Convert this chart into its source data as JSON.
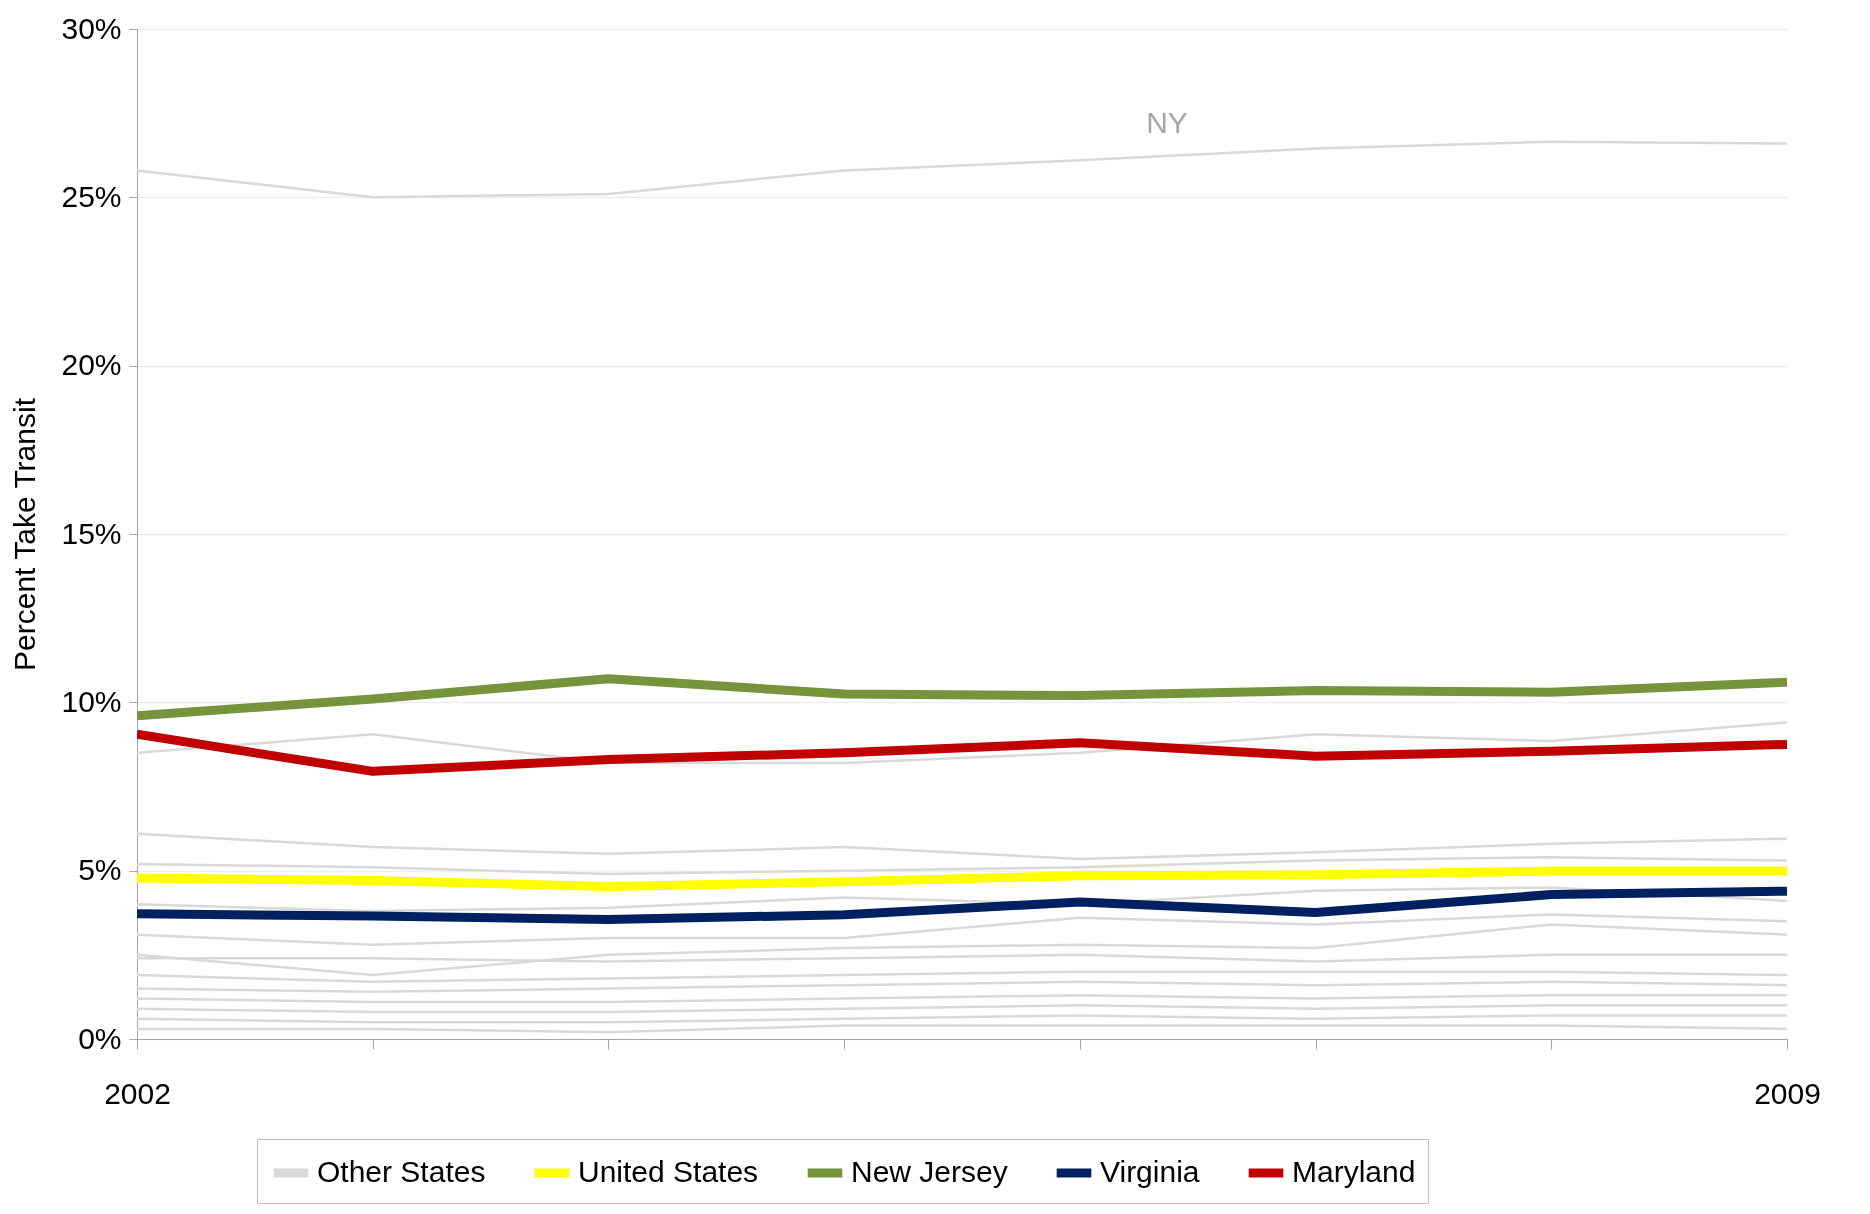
{
  "chart_data": {
    "type": "line",
    "ylabel": "Percent Take Transit",
    "x": [
      2002,
      2003,
      2004,
      2005,
      2006,
      2007,
      2008,
      2009
    ],
    "xlim": [
      2002,
      2009
    ],
    "xticks": [
      2002,
      {
        "value": 2003,
        "label": null
      },
      {
        "value": 2004,
        "label": null
      },
      {
        "value": 2005,
        "label": null
      },
      {
        "value": 2006,
        "label": null
      },
      {
        "value": 2007,
        "label": null
      },
      {
        "value": 2008,
        "label": null
      },
      2009
    ],
    "ylim": [
      0,
      30
    ],
    "yticks": [
      {
        "value": 0,
        "label": "0%"
      },
      {
        "value": 5,
        "label": "5%"
      },
      {
        "value": 10,
        "label": "10%"
      },
      {
        "value": 15,
        "label": "15%"
      },
      {
        "value": 20,
        "label": "20%"
      },
      {
        "value": 25,
        "label": "25%"
      },
      {
        "value": 30,
        "label": "30%"
      }
    ],
    "grid": "y",
    "legend": "bottom",
    "annotations": [
      "NY"
    ],
    "series": [
      {
        "name": "Other States",
        "color": "#d9d9d9",
        "values": [
          25.8,
          25.0,
          25.1,
          25.8,
          26.1,
          26.45,
          26.65,
          26.6
        ]
      },
      {
        "color": "#d9d9d9",
        "values": [
          8.5,
          9.05,
          8.2,
          8.2,
          8.5,
          9.05,
          8.85,
          9.4
        ]
      },
      {
        "color": "#d9d9d9",
        "values": [
          6.1,
          5.7,
          5.5,
          5.7,
          5.35,
          5.55,
          5.8,
          5.95
        ]
      },
      {
        "color": "#d9d9d9",
        "values": [
          5.2,
          5.1,
          4.9,
          5.0,
          5.1,
          5.3,
          5.4,
          5.3
        ]
      },
      {
        "color": "#d9d9d9",
        "values": [
          4.0,
          3.8,
          3.9,
          4.2,
          4.0,
          4.4,
          4.5,
          4.1
        ]
      },
      {
        "color": "#d9d9d9",
        "values": [
          3.1,
          2.8,
          3.0,
          3.0,
          3.6,
          3.4,
          3.7,
          3.5
        ]
      },
      {
        "color": "#d9d9d9",
        "values": [
          2.5,
          1.9,
          2.5,
          2.7,
          2.8,
          2.7,
          3.4,
          3.1
        ]
      },
      {
        "color": "#d9d9d9",
        "values": [
          2.4,
          2.4,
          2.3,
          2.4,
          2.5,
          2.3,
          2.5,
          2.5
        ]
      },
      {
        "color": "#d9d9d9",
        "values": [
          1.9,
          1.7,
          1.8,
          1.9,
          2.0,
          2.0,
          2.0,
          1.9
        ]
      },
      {
        "color": "#d9d9d9",
        "values": [
          1.5,
          1.4,
          1.5,
          1.6,
          1.7,
          1.6,
          1.7,
          1.6
        ]
      },
      {
        "color": "#d9d9d9",
        "values": [
          1.2,
          1.1,
          1.1,
          1.2,
          1.3,
          1.2,
          1.3,
          1.3
        ]
      },
      {
        "color": "#d9d9d9",
        "values": [
          0.9,
          0.8,
          0.8,
          0.9,
          1.0,
          0.9,
          1.0,
          1.0
        ]
      },
      {
        "color": "#d9d9d9",
        "values": [
          0.6,
          0.5,
          0.5,
          0.6,
          0.7,
          0.6,
          0.7,
          0.7
        ]
      },
      {
        "color": "#d9d9d9",
        "values": [
          0.3,
          0.3,
          0.2,
          0.4,
          0.4,
          0.4,
          0.4,
          0.3
        ]
      },
      {
        "name": "United States",
        "color": "#ffff00",
        "values": [
          4.78,
          4.71,
          4.53,
          4.67,
          4.85,
          4.88,
          4.99,
          4.99
        ]
      },
      {
        "name": "New Jersey",
        "color": "#77933c",
        "values": [
          9.6,
          10.1,
          10.7,
          10.25,
          10.2,
          10.35,
          10.3,
          10.6
        ]
      },
      {
        "name": "Virginia",
        "color": "#002060",
        "values": [
          3.72,
          3.65,
          3.55,
          3.69,
          4.07,
          3.76,
          4.29,
          4.39
        ]
      },
      {
        "name": "Maryland",
        "color": "#c00000",
        "values": [
          9.05,
          7.95,
          8.3,
          8.5,
          8.8,
          8.4,
          8.55,
          8.75
        ]
      }
    ]
  }
}
